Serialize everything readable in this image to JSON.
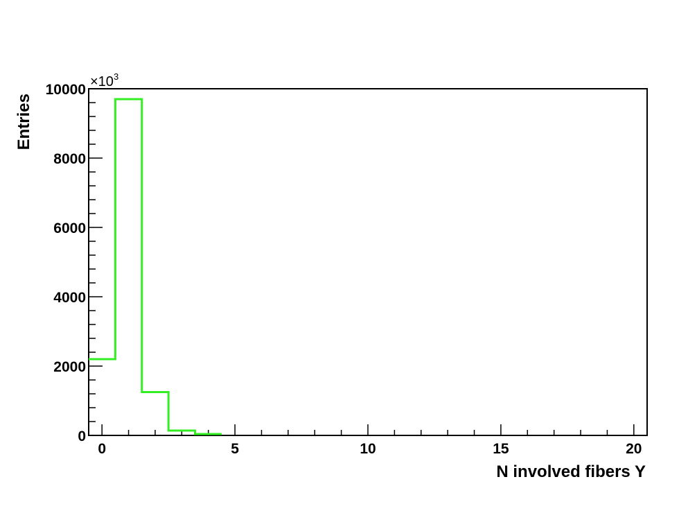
{
  "chart_data": {
    "type": "bar",
    "style": "step-histogram",
    "xlabel": "N involved fibers Y",
    "ylabel": "Entries",
    "y_multiplier": {
      "base": "×10",
      "exponent": "3"
    },
    "xlim": [
      -0.5,
      20.5
    ],
    "ylim": [
      0,
      10000
    ],
    "x_major_ticks": [
      0,
      5,
      10,
      15,
      20
    ],
    "x_tick_labels": [
      "0",
      "5",
      "10",
      "15",
      "20"
    ],
    "y_major_ticks": [
      0,
      2000,
      4000,
      6000,
      8000,
      10000
    ],
    "y_tick_labels": [
      "0",
      "2000",
      "4000",
      "6000",
      "8000",
      "10000"
    ],
    "grid": false,
    "line_color": "#33ee22",
    "series": [
      {
        "bin_width": 1,
        "bin_centers": [
          0,
          1,
          2,
          3,
          4
        ],
        "values": [
          2200,
          9700,
          1250,
          140,
          40
        ]
      }
    ]
  }
}
